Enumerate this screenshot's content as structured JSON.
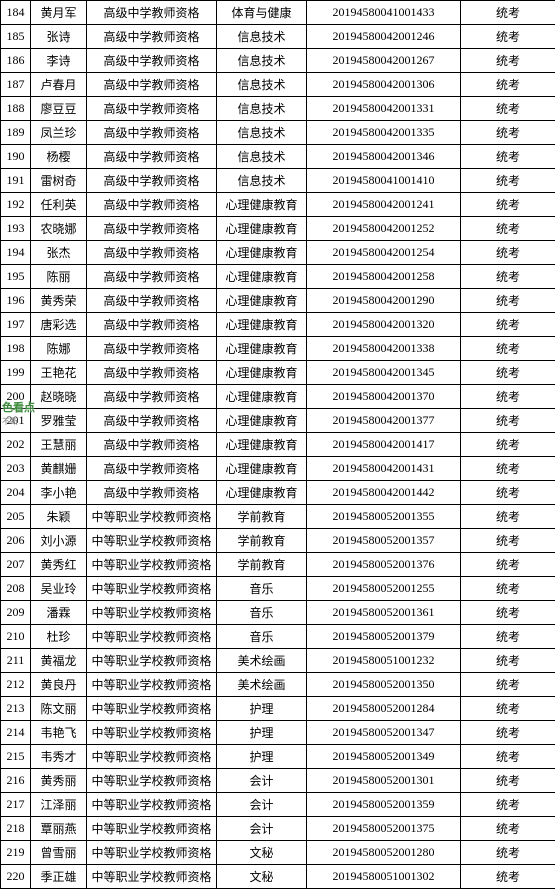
{
  "table": {
    "columns": [
      {
        "key": "id",
        "class": "col-id"
      },
      {
        "key": "name",
        "class": "col-name"
      },
      {
        "key": "qual",
        "class": "col-qual"
      },
      {
        "key": "subj",
        "class": "col-subj"
      },
      {
        "key": "cert",
        "class": "col-cert"
      },
      {
        "key": "exam",
        "class": "col-exam"
      }
    ],
    "rows": [
      {
        "id": "184",
        "name": "黄月军",
        "qual": "高级中学教师资格",
        "subj": "体育与健康",
        "cert": "20194580041001433",
        "exam": "统考"
      },
      {
        "id": "185",
        "name": "张诗",
        "qual": "高级中学教师资格",
        "subj": "信息技术",
        "cert": "20194580042001246",
        "exam": "统考"
      },
      {
        "id": "186",
        "name": "李诗",
        "qual": "高级中学教师资格",
        "subj": "信息技术",
        "cert": "20194580042001267",
        "exam": "统考"
      },
      {
        "id": "187",
        "name": "卢春月",
        "qual": "高级中学教师资格",
        "subj": "信息技术",
        "cert": "20194580042001306",
        "exam": "统考"
      },
      {
        "id": "188",
        "name": "廖豆豆",
        "qual": "高级中学教师资格",
        "subj": "信息技术",
        "cert": "20194580042001331",
        "exam": "统考"
      },
      {
        "id": "189",
        "name": "凤兰珍",
        "qual": "高级中学教师资格",
        "subj": "信息技术",
        "cert": "20194580042001335",
        "exam": "统考"
      },
      {
        "id": "190",
        "name": "杨樱",
        "qual": "高级中学教师资格",
        "subj": "信息技术",
        "cert": "20194580042001346",
        "exam": "统考"
      },
      {
        "id": "191",
        "name": "雷树奇",
        "qual": "高级中学教师资格",
        "subj": "信息技术",
        "cert": "20194580041001410",
        "exam": "统考"
      },
      {
        "id": "192",
        "name": "任利英",
        "qual": "高级中学教师资格",
        "subj": "心理健康教育",
        "cert": "20194580042001241",
        "exam": "统考"
      },
      {
        "id": "193",
        "name": "农晓娜",
        "qual": "高级中学教师资格",
        "subj": "心理健康教育",
        "cert": "20194580042001252",
        "exam": "统考"
      },
      {
        "id": "194",
        "name": "张杰",
        "qual": "高级中学教师资格",
        "subj": "心理健康教育",
        "cert": "20194580042001254",
        "exam": "统考"
      },
      {
        "id": "195",
        "name": "陈丽",
        "qual": "高级中学教师资格",
        "subj": "心理健康教育",
        "cert": "20194580042001258",
        "exam": "统考"
      },
      {
        "id": "196",
        "name": "黄秀荣",
        "qual": "高级中学教师资格",
        "subj": "心理健康教育",
        "cert": "20194580042001290",
        "exam": "统考"
      },
      {
        "id": "197",
        "name": "唐彩选",
        "qual": "高级中学教师资格",
        "subj": "心理健康教育",
        "cert": "20194580042001320",
        "exam": "统考"
      },
      {
        "id": "198",
        "name": "陈娜",
        "qual": "高级中学教师资格",
        "subj": "心理健康教育",
        "cert": "20194580042001338",
        "exam": "统考"
      },
      {
        "id": "199",
        "name": "王艳花",
        "qual": "高级中学教师资格",
        "subj": "心理健康教育",
        "cert": "20194580042001345",
        "exam": "统考"
      },
      {
        "id": "200",
        "name": "赵晓晓",
        "qual": "高级中学教师资格",
        "subj": "心理健康教育",
        "cert": "20194580042001370",
        "exam": "统考"
      },
      {
        "id": "201",
        "name": "罗雅莹",
        "qual": "高级中学教师资格",
        "subj": "心理健康教育",
        "cert": "20194580042001377",
        "exam": "统考"
      },
      {
        "id": "202",
        "name": "王慧丽",
        "qual": "高级中学教师资格",
        "subj": "心理健康教育",
        "cert": "20194580042001417",
        "exam": "统考"
      },
      {
        "id": "203",
        "name": "黄麒姗",
        "qual": "高级中学教师资格",
        "subj": "心理健康教育",
        "cert": "20194580042001431",
        "exam": "统考"
      },
      {
        "id": "204",
        "name": "李小艳",
        "qual": "高级中学教师资格",
        "subj": "心理健康教育",
        "cert": "20194580042001442",
        "exam": "统考"
      },
      {
        "id": "205",
        "name": "朱颖",
        "qual": "中等职业学校教师资格",
        "subj": "学前教育",
        "cert": "20194580052001355",
        "exam": "统考"
      },
      {
        "id": "206",
        "name": "刘小源",
        "qual": "中等职业学校教师资格",
        "subj": "学前教育",
        "cert": "20194580052001357",
        "exam": "统考"
      },
      {
        "id": "207",
        "name": "黄秀红",
        "qual": "中等职业学校教师资格",
        "subj": "学前教育",
        "cert": "20194580052001376",
        "exam": "统考"
      },
      {
        "id": "208",
        "name": "吴业玲",
        "qual": "中等职业学校教师资格",
        "subj": "音乐",
        "cert": "20194580052001255",
        "exam": "统考"
      },
      {
        "id": "209",
        "name": "潘霖",
        "qual": "中等职业学校教师资格",
        "subj": "音乐",
        "cert": "20194580052001361",
        "exam": "统考"
      },
      {
        "id": "210",
        "name": "杜珍",
        "qual": "中等职业学校教师资格",
        "subj": "音乐",
        "cert": "20194580052001379",
        "exam": "统考"
      },
      {
        "id": "211",
        "name": "黄福龙",
        "qual": "中等职业学校教师资格",
        "subj": "美术绘画",
        "cert": "20194580051001232",
        "exam": "统考"
      },
      {
        "id": "212",
        "name": "黄良丹",
        "qual": "中等职业学校教师资格",
        "subj": "美术绘画",
        "cert": "20194580052001350",
        "exam": "统考"
      },
      {
        "id": "213",
        "name": "陈文丽",
        "qual": "中等职业学校教师资格",
        "subj": "护理",
        "cert": "20194580052001284",
        "exam": "统考"
      },
      {
        "id": "214",
        "name": "韦艳飞",
        "qual": "中等职业学校教师资格",
        "subj": "护理",
        "cert": "20194580052001347",
        "exam": "统考"
      },
      {
        "id": "215",
        "name": "韦秀才",
        "qual": "中等职业学校教师资格",
        "subj": "护理",
        "cert": "20194580052001349",
        "exam": "统考"
      },
      {
        "id": "216",
        "name": "黄秀丽",
        "qual": "中等职业学校教师资格",
        "subj": "会计",
        "cert": "20194580052001301",
        "exam": "统考"
      },
      {
        "id": "217",
        "name": "江泽丽",
        "qual": "中等职业学校教师资格",
        "subj": "会计",
        "cert": "20194580052001359",
        "exam": "统考"
      },
      {
        "id": "218",
        "name": "覃丽燕",
        "qual": "中等职业学校教师资格",
        "subj": "会计",
        "cert": "20194580052001375",
        "exam": "统考"
      },
      {
        "id": "219",
        "name": "曾雪丽",
        "qual": "中等职业学校教师资格",
        "subj": "文秘",
        "cert": "20194580052001280",
        "exam": "统考"
      },
      {
        "id": "220",
        "name": "季正雄",
        "qual": "中等职业学校教师资格",
        "subj": "文秘",
        "cert": "20194580051001302",
        "exam": "统考"
      }
    ]
  },
  "watermark": {
    "main": "色看点",
    "sub": "不断"
  },
  "colors": {
    "border": "#000000",
    "text": "#000000",
    "background": "#ffffff",
    "watermark": "#3a8a3a"
  }
}
